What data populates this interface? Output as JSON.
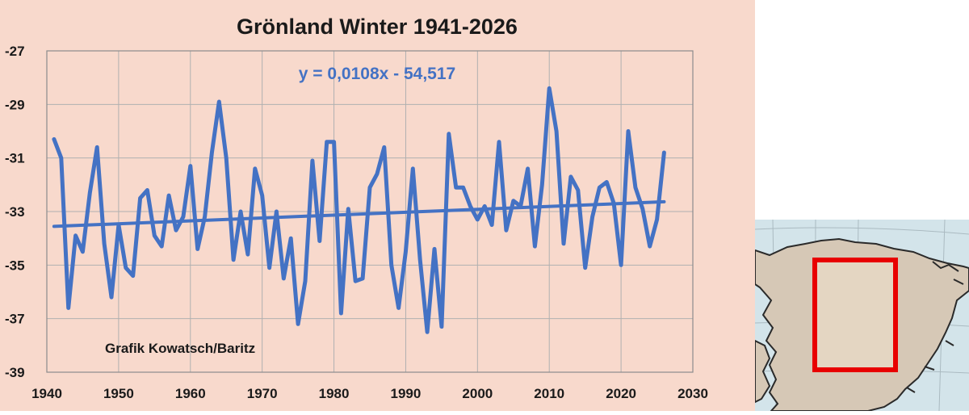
{
  "chart_data": {
    "type": "line",
    "title": "Grönland Winter 1941-2026",
    "xlabel": "",
    "ylabel": "",
    "xlim": [
      1940,
      2030
    ],
    "ylim": [
      -39,
      -27
    ],
    "x_ticks": [
      1940,
      1950,
      1960,
      1970,
      1980,
      1990,
      2000,
      2010,
      2020,
      2030
    ],
    "y_ticks": [
      -27,
      -29,
      -31,
      -33,
      -35,
      -37,
      -39
    ],
    "grid": true,
    "legend": "none",
    "annotations": {
      "trend_equation": "y = 0,0108x - 54,517",
      "credit": "Grafik Kowatsch/Baritz"
    },
    "colors": {
      "background": "#f8d9cc",
      "series": "#4472c4",
      "grid": "#b0b0b0"
    },
    "series": [
      {
        "x": [
          1941,
          1942,
          1943,
          1944,
          1945,
          1946,
          1947,
          1948,
          1949,
          1950,
          1951,
          1952,
          1953,
          1954,
          1955,
          1956,
          1957,
          1958,
          1959,
          1960,
          1961,
          1962,
          1963,
          1964,
          1965,
          1966,
          1967,
          1968,
          1969,
          1970,
          1971,
          1972,
          1973,
          1974,
          1975,
          1976,
          1977,
          1978,
          1979,
          1980,
          1981,
          1982,
          1983,
          1984,
          1985,
          1986,
          1987,
          1988,
          1989,
          1990,
          1991,
          1992,
          1993,
          1994,
          1995,
          1996,
          1997,
          1998,
          1999,
          2000,
          2001,
          2002,
          2003,
          2004,
          2005,
          2006,
          2007,
          2008,
          2009,
          2010,
          2011,
          2012,
          2013,
          2014,
          2015,
          2016,
          2017,
          2018,
          2019,
          2020,
          2021,
          2022,
          2023,
          2024,
          2025,
          2026
        ],
        "values": [
          -30.3,
          -31.0,
          -36.6,
          -33.9,
          -34.5,
          -32.3,
          -30.6,
          -34.2,
          -36.2,
          -33.5,
          -35.1,
          -35.4,
          -32.5,
          -32.2,
          -33.9,
          -34.3,
          -32.4,
          -33.7,
          -33.2,
          -31.3,
          -34.4,
          -33.2,
          -30.8,
          -28.9,
          -31.0,
          -34.8,
          -33.0,
          -34.6,
          -31.4,
          -32.4,
          -35.1,
          -33.0,
          -35.5,
          -34.0,
          -37.2,
          -35.6,
          -31.1,
          -34.1,
          -30.4,
          -30.4,
          -36.8,
          -32.9,
          -35.6,
          -35.5,
          -32.1,
          -31.6,
          -30.6,
          -35.0,
          -36.6,
          -34.5,
          -31.4,
          -34.8,
          -37.5,
          -34.4,
          -37.3,
          -30.1,
          -32.1,
          -32.1,
          -32.8,
          -33.3,
          -32.8,
          -33.5,
          -30.4,
          -33.7,
          -32.6,
          -32.8,
          -31.4,
          -34.3,
          -32.0,
          -28.4,
          -30.0,
          -34.2,
          -31.7,
          -32.2,
          -35.1,
          -33.2,
          -32.1,
          -31.9,
          -32.7,
          -35.0,
          -30.0,
          -32.1,
          -32.9,
          -34.3,
          -33.3,
          -30.8
        ]
      }
    ],
    "trendline": {
      "slope": 0.0108,
      "intercept": -54.517,
      "x_range": [
        1941,
        2026
      ]
    }
  },
  "map_inset": {
    "colors": {
      "sea": "#d3e4ea",
      "land": "#d6c8b6",
      "highlight": "#e80000",
      "coast": "#2a2a2a"
    }
  }
}
